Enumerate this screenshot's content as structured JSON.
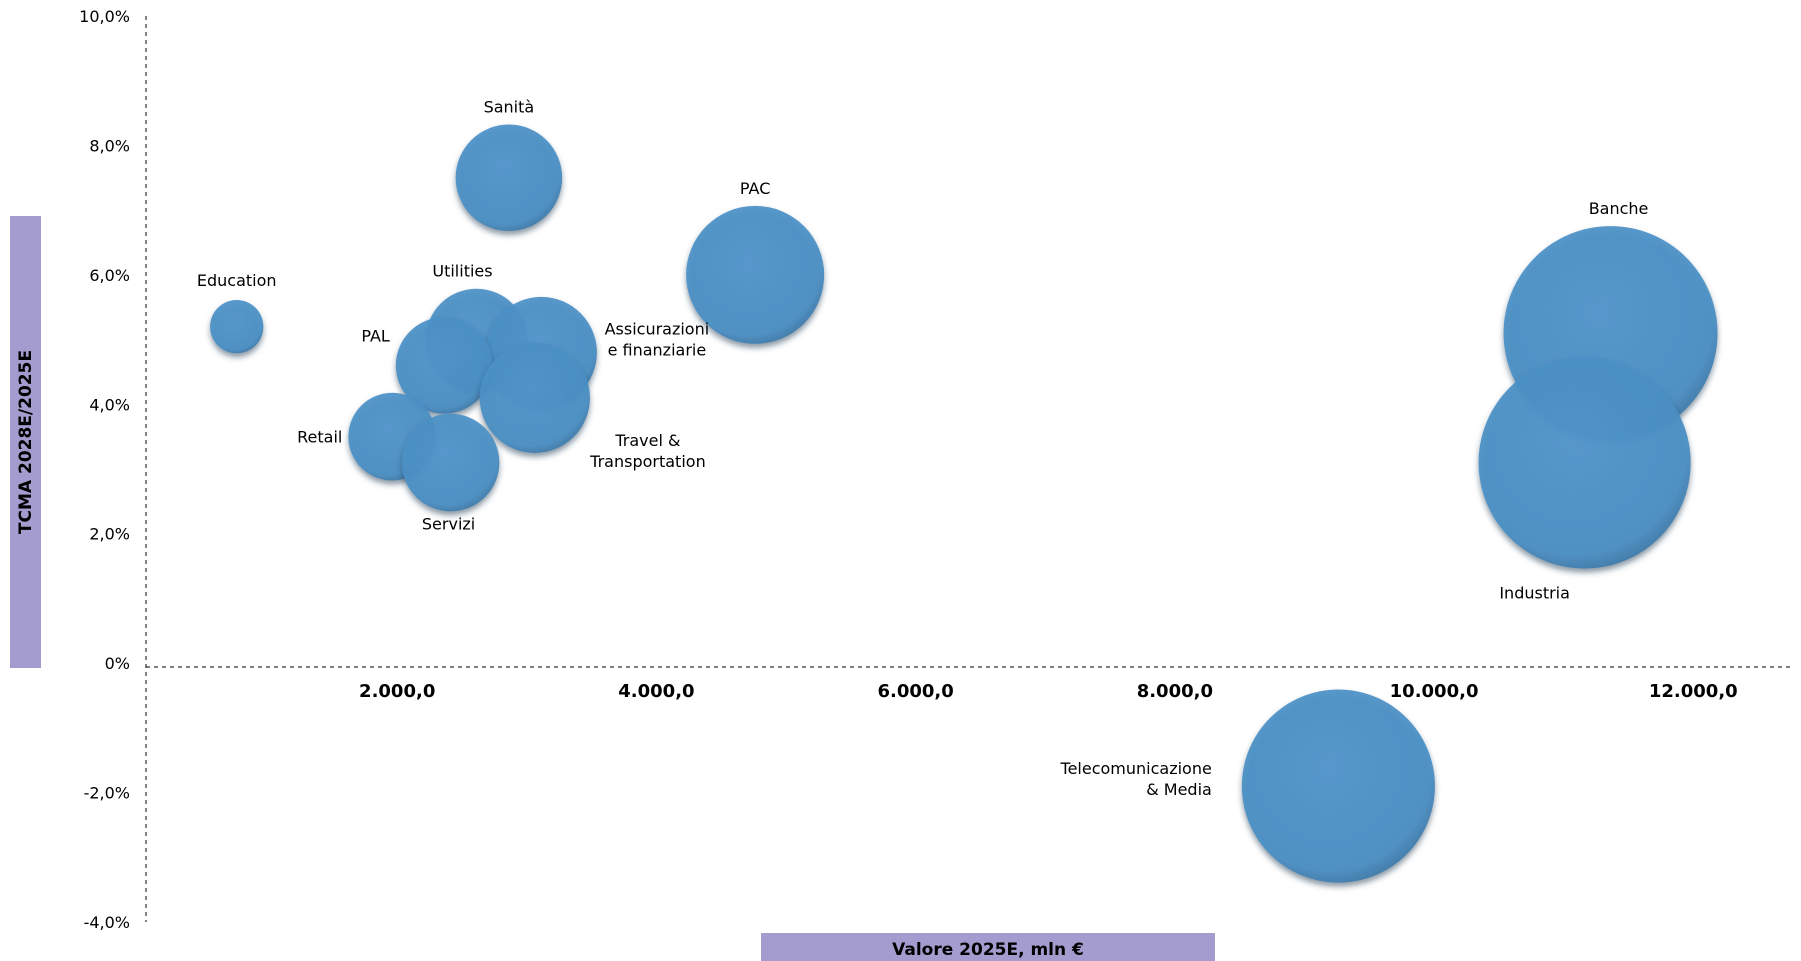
{
  "chart_data": {
    "type": "bubble",
    "xlabel": "Valore 2025E, mln €",
    "ylabel": "TCMA 2028E/2025E",
    "xlim": [
      0,
      12700
    ],
    "ylim": [
      -4.0,
      10.0
    ],
    "x_ticks": [
      "2.000,0",
      "4.000,0",
      "6.000,0",
      "8.000,0",
      "10.000,0",
      "12.000,0"
    ],
    "x_tick_values": [
      2000,
      4000,
      6000,
      8000,
      10000,
      12000
    ],
    "y_ticks": [
      "10,0%",
      "8,0%",
      "6,0%",
      "4,0%",
      "2,0%",
      "0%",
      "-2,0%",
      "-4,0%"
    ],
    "y_tick_values": [
      10,
      8,
      6,
      4,
      2,
      0,
      -2,
      -4
    ],
    "bubble_color": "#4a8fc4",
    "axis_title_bg": "#a49cce",
    "points": [
      {
        "label": "Sanità",
        "x": 2800,
        "y": 7.5,
        "size": 2800
      },
      {
        "label": "PAC",
        "x": 4700,
        "y": 6.0,
        "size": 4700
      },
      {
        "label": "Education",
        "x": 700,
        "y": 5.2,
        "size": 700
      },
      {
        "label": "Utilities",
        "x": 2550,
        "y": 5.0,
        "size": 2550
      },
      {
        "label": "Assicurazioni e finanziarie",
        "x": 3050,
        "y": 4.8,
        "size": 3050
      },
      {
        "label": "PAL",
        "x": 2300,
        "y": 4.6,
        "size": 2300
      },
      {
        "label": "Travel & Transportation",
        "x": 3000,
        "y": 4.1,
        "size": 3000
      },
      {
        "label": "Retail",
        "x": 1900,
        "y": 3.5,
        "size": 1900
      },
      {
        "label": "Servizi",
        "x": 2350,
        "y": 3.1,
        "size": 2350
      },
      {
        "label": "Banche",
        "x": 11300,
        "y": 5.1,
        "size": 11300
      },
      {
        "label": "Industria",
        "x": 11100,
        "y": 3.1,
        "size": 11100
      },
      {
        "label": "Telecomunicazione & Media",
        "x": 9200,
        "y": -1.9,
        "size": 9200
      }
    ]
  }
}
